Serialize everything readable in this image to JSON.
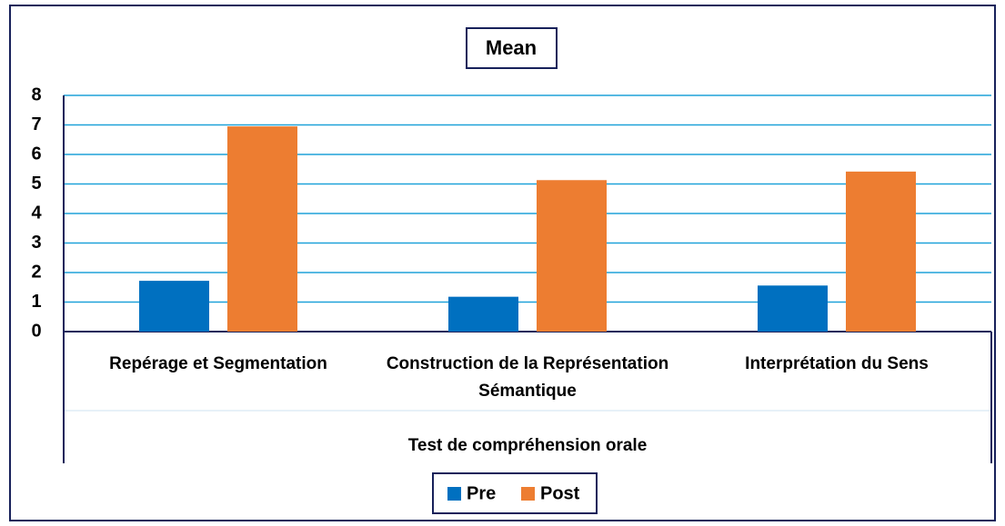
{
  "chart_data": {
    "type": "bar",
    "title": "Mean",
    "x_label": "Test de compréhension orale",
    "categories": [
      "Repérage et Segmentation",
      "Construction de la Représentation Sémantique",
      "Interprétation du Sens"
    ],
    "series": [
      {
        "name": "Pre",
        "color": "#0070c0",
        "values": [
          1.72,
          1.18,
          1.56
        ]
      },
      {
        "name": "Post",
        "color": "#ed7d31",
        "values": [
          6.95,
          5.13,
          5.42
        ]
      }
    ],
    "ylim": [
      0,
      8
    ],
    "yticks": [
      0,
      1,
      2,
      3,
      4,
      5,
      6,
      7,
      8
    ],
    "grid": true,
    "legend": "bottom"
  }
}
